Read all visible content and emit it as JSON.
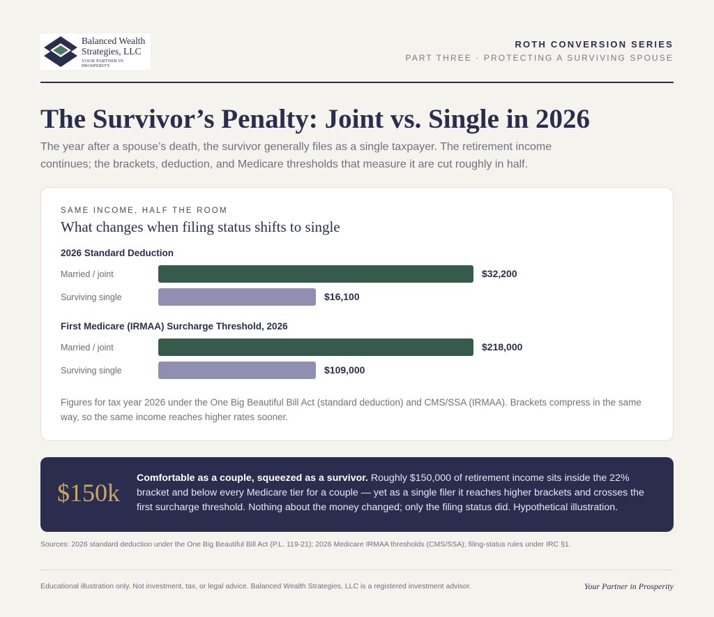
{
  "header": {
    "logo_name_line1": "Balanced Wealth",
    "logo_name_line2": "Strategies, LLC",
    "logo_tagline": "YOUR PARTNER IN PROSPERITY",
    "series_title": "ROTH CONVERSION SERIES",
    "series_subtitle": "PART THREE · PROTECTING A SURVIVING SPOUSE"
  },
  "title": "The Survivor’s Penalty: Joint vs. Single in 2026",
  "intro": "The year after a spouse’s death, the survivor generally files as a single taxpayer. The retirement income continues; the brackets, deduction, and Medicare thresholds that measure it are cut roughly in half.",
  "card": {
    "eyebrow": "SAME INCOME, HALF THE ROOM",
    "title": "What changes when filing status shifts to single",
    "note": "Figures for tax year 2026 under the One Big Beautiful Bill Act (standard deduction) and CMS/SSA (IRMAA). Brackets compress in the same way, so the same income reaches higher rates sooner."
  },
  "chart_data": {
    "type": "bar",
    "orientation": "horizontal",
    "groups": [
      {
        "title": "2026 Standard Deduction",
        "rows": [
          {
            "label": "Married / joint",
            "value": 32200,
            "value_label": "$32,200",
            "color": "#365b4c"
          },
          {
            "label": "Surviving single",
            "value": 16100,
            "value_label": "$16,100",
            "color": "#908fb2"
          }
        ]
      },
      {
        "title": "First Medicare (IRMAA) Surcharge Threshold, 2026",
        "rows": [
          {
            "label": "Married / joint",
            "value": 218000,
            "value_label": "$218,000",
            "color": "#365b4c"
          },
          {
            "label": "Surviving single",
            "value": 109000,
            "value_label": "$109,000",
            "color": "#908fb2"
          }
        ]
      }
    ]
  },
  "callout": {
    "big_number": "$150k",
    "lead": "Comfortable as a couple, squeezed as a survivor.",
    "body": "Roughly $150,000 of retirement income sits inside the 22% bracket and below every Medicare tier for a couple — yet as a single filer it reaches higher brackets and crosses the first surcharge threshold. Nothing about the money changed; only the filing status did. Hypothetical illustration."
  },
  "sources": "Sources: 2026 standard deduction under the One Big Beautiful Bill Act (P.L. 119-21); 2026 Medicare IRMAA thresholds (CMS/SSA); filing-status rules under IRC §1.",
  "footer": {
    "disclaimer": "Educational illustration only. Not investment, tax, or legal advice. Balanced Wealth Strategies, LLC is a registered investment advisor.",
    "tagline": "Your Partner in Prosperity"
  },
  "colors": {
    "navy": "#2b2d4f",
    "green": "#365b4c",
    "lavender": "#908fb2",
    "gold": "#c9a862",
    "background": "#f5f3ee"
  }
}
